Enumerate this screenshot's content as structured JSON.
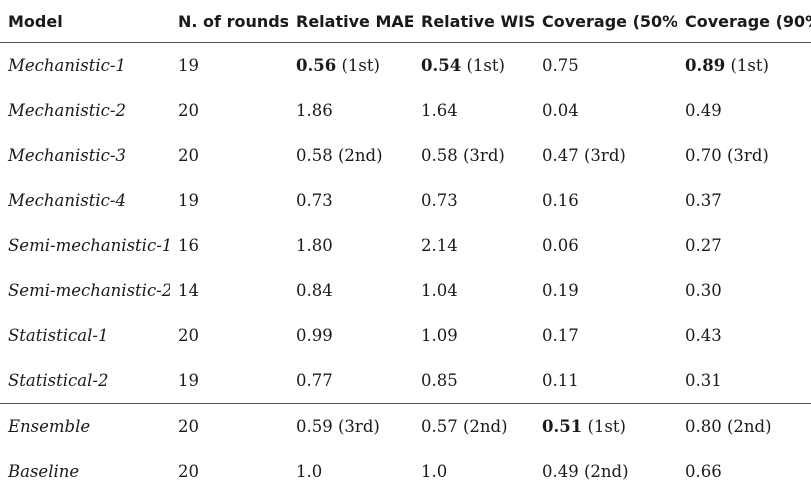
{
  "table": {
    "headers": [
      "Model",
      "N. of rounds",
      "Relative MAE",
      "Relative WIS",
      "Coverage (50%)",
      "Coverage (90%"
    ],
    "rows": [
      {
        "model": "Mechanistic-1",
        "rounds": "19",
        "mae": {
          "value": "0.56",
          "rank": "(1st)",
          "best": true
        },
        "wis": {
          "value": "0.54",
          "rank": "(1st)",
          "best": true
        },
        "c50": {
          "value": "0.75",
          "rank": "",
          "best": false
        },
        "c90": {
          "value": "0.89",
          "rank": "(1st)",
          "best": true
        }
      },
      {
        "model": "Mechanistic-2",
        "rounds": "20",
        "mae": {
          "value": "1.86",
          "rank": "",
          "best": false
        },
        "wis": {
          "value": "1.64",
          "rank": "",
          "best": false
        },
        "c50": {
          "value": "0.04",
          "rank": "",
          "best": false
        },
        "c90": {
          "value": "0.49",
          "rank": "",
          "best": false
        }
      },
      {
        "model": "Mechanistic-3",
        "rounds": "20",
        "mae": {
          "value": "0.58",
          "rank": "(2nd)",
          "best": false
        },
        "wis": {
          "value": "0.58",
          "rank": "(3rd)",
          "best": false
        },
        "c50": {
          "value": "0.47",
          "rank": "(3rd)",
          "best": false
        },
        "c90": {
          "value": "0.70",
          "rank": "(3rd)",
          "best": false
        }
      },
      {
        "model": "Mechanistic-4",
        "rounds": "19",
        "mae": {
          "value": "0.73",
          "rank": "",
          "best": false
        },
        "wis": {
          "value": "0.73",
          "rank": "",
          "best": false
        },
        "c50": {
          "value": "0.16",
          "rank": "",
          "best": false
        },
        "c90": {
          "value": "0.37",
          "rank": "",
          "best": false
        }
      },
      {
        "model": "Semi-mechanistic-1",
        "rounds": "16",
        "mae": {
          "value": "1.80",
          "rank": "",
          "best": false
        },
        "wis": {
          "value": "2.14",
          "rank": "",
          "best": false
        },
        "c50": {
          "value": "0.06",
          "rank": "",
          "best": false
        },
        "c90": {
          "value": "0.27",
          "rank": "",
          "best": false
        }
      },
      {
        "model": "Semi-mechanistic-2",
        "rounds": "14",
        "mae": {
          "value": "0.84",
          "rank": "",
          "best": false
        },
        "wis": {
          "value": "1.04",
          "rank": "",
          "best": false
        },
        "c50": {
          "value": "0.19",
          "rank": "",
          "best": false
        },
        "c90": {
          "value": "0.30",
          "rank": "",
          "best": false
        }
      },
      {
        "model": "Statistical-1",
        "rounds": "20",
        "mae": {
          "value": "0.99",
          "rank": "",
          "best": false
        },
        "wis": {
          "value": "1.09",
          "rank": "",
          "best": false
        },
        "c50": {
          "value": "0.17",
          "rank": "",
          "best": false
        },
        "c90": {
          "value": "0.43",
          "rank": "",
          "best": false
        }
      },
      {
        "model": "Statistical-2",
        "rounds": "19",
        "mae": {
          "value": "0.77",
          "rank": "",
          "best": false
        },
        "wis": {
          "value": "0.85",
          "rank": "",
          "best": false
        },
        "c50": {
          "value": "0.11",
          "rank": "",
          "best": false
        },
        "c90": {
          "value": "0.31",
          "rank": "",
          "best": false
        }
      },
      {
        "model": "Ensemble",
        "rounds": "20",
        "separator": true,
        "mae": {
          "value": "0.59",
          "rank": "(3rd)",
          "best": false
        },
        "wis": {
          "value": "0.57",
          "rank": "(2nd)",
          "best": false
        },
        "c50": {
          "value": "0.51",
          "rank": "(1st)",
          "best": true
        },
        "c90": {
          "value": "0.80",
          "rank": "(2nd)",
          "best": false
        }
      },
      {
        "model": "Baseline",
        "rounds": "20",
        "mae": {
          "value": "1.0",
          "rank": "",
          "best": false
        },
        "wis": {
          "value": "1.0",
          "rank": "",
          "best": false
        },
        "c50": {
          "value": "0.49",
          "rank": "(2nd)",
          "best": false
        },
        "c90": {
          "value": "0.66",
          "rank": "",
          "best": false
        }
      }
    ]
  }
}
